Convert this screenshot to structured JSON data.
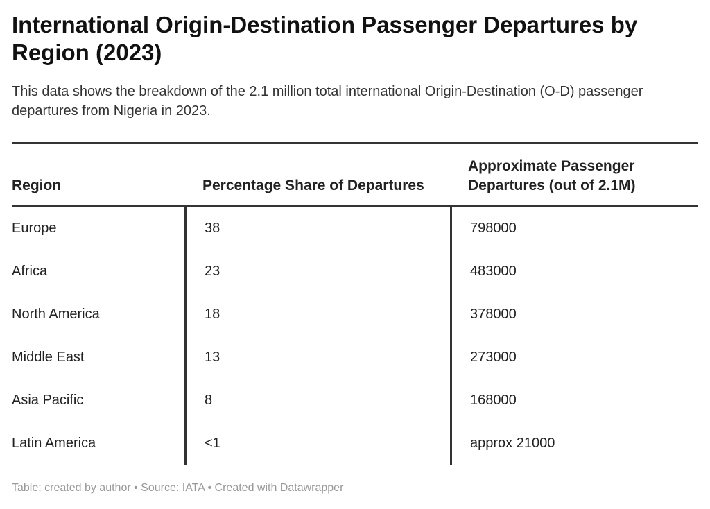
{
  "title": "International Origin-Destination Passenger Departures by Region (2023)",
  "subtitle": "This data shows the breakdown of the 2.1 million total international Origin-Destination (O-D) passenger departures from Nigeria in 2023.",
  "footer": "Table: created by author • Source: IATA • Created with Datawrapper",
  "chart_data": {
    "type": "table",
    "columns": [
      "Region",
      "Percentage Share of Departures",
      "Approximate Passenger Departures (out of 2.1M)"
    ],
    "rows": [
      [
        "Europe",
        "38",
        "798000"
      ],
      [
        "Africa",
        "23",
        "483000"
      ],
      [
        "North America",
        "18",
        "378000"
      ],
      [
        "Middle East",
        "13",
        "273000"
      ],
      [
        "Asia Pacific",
        "8",
        "168000"
      ],
      [
        "Latin America",
        "<1",
        "approx 21000"
      ]
    ]
  }
}
